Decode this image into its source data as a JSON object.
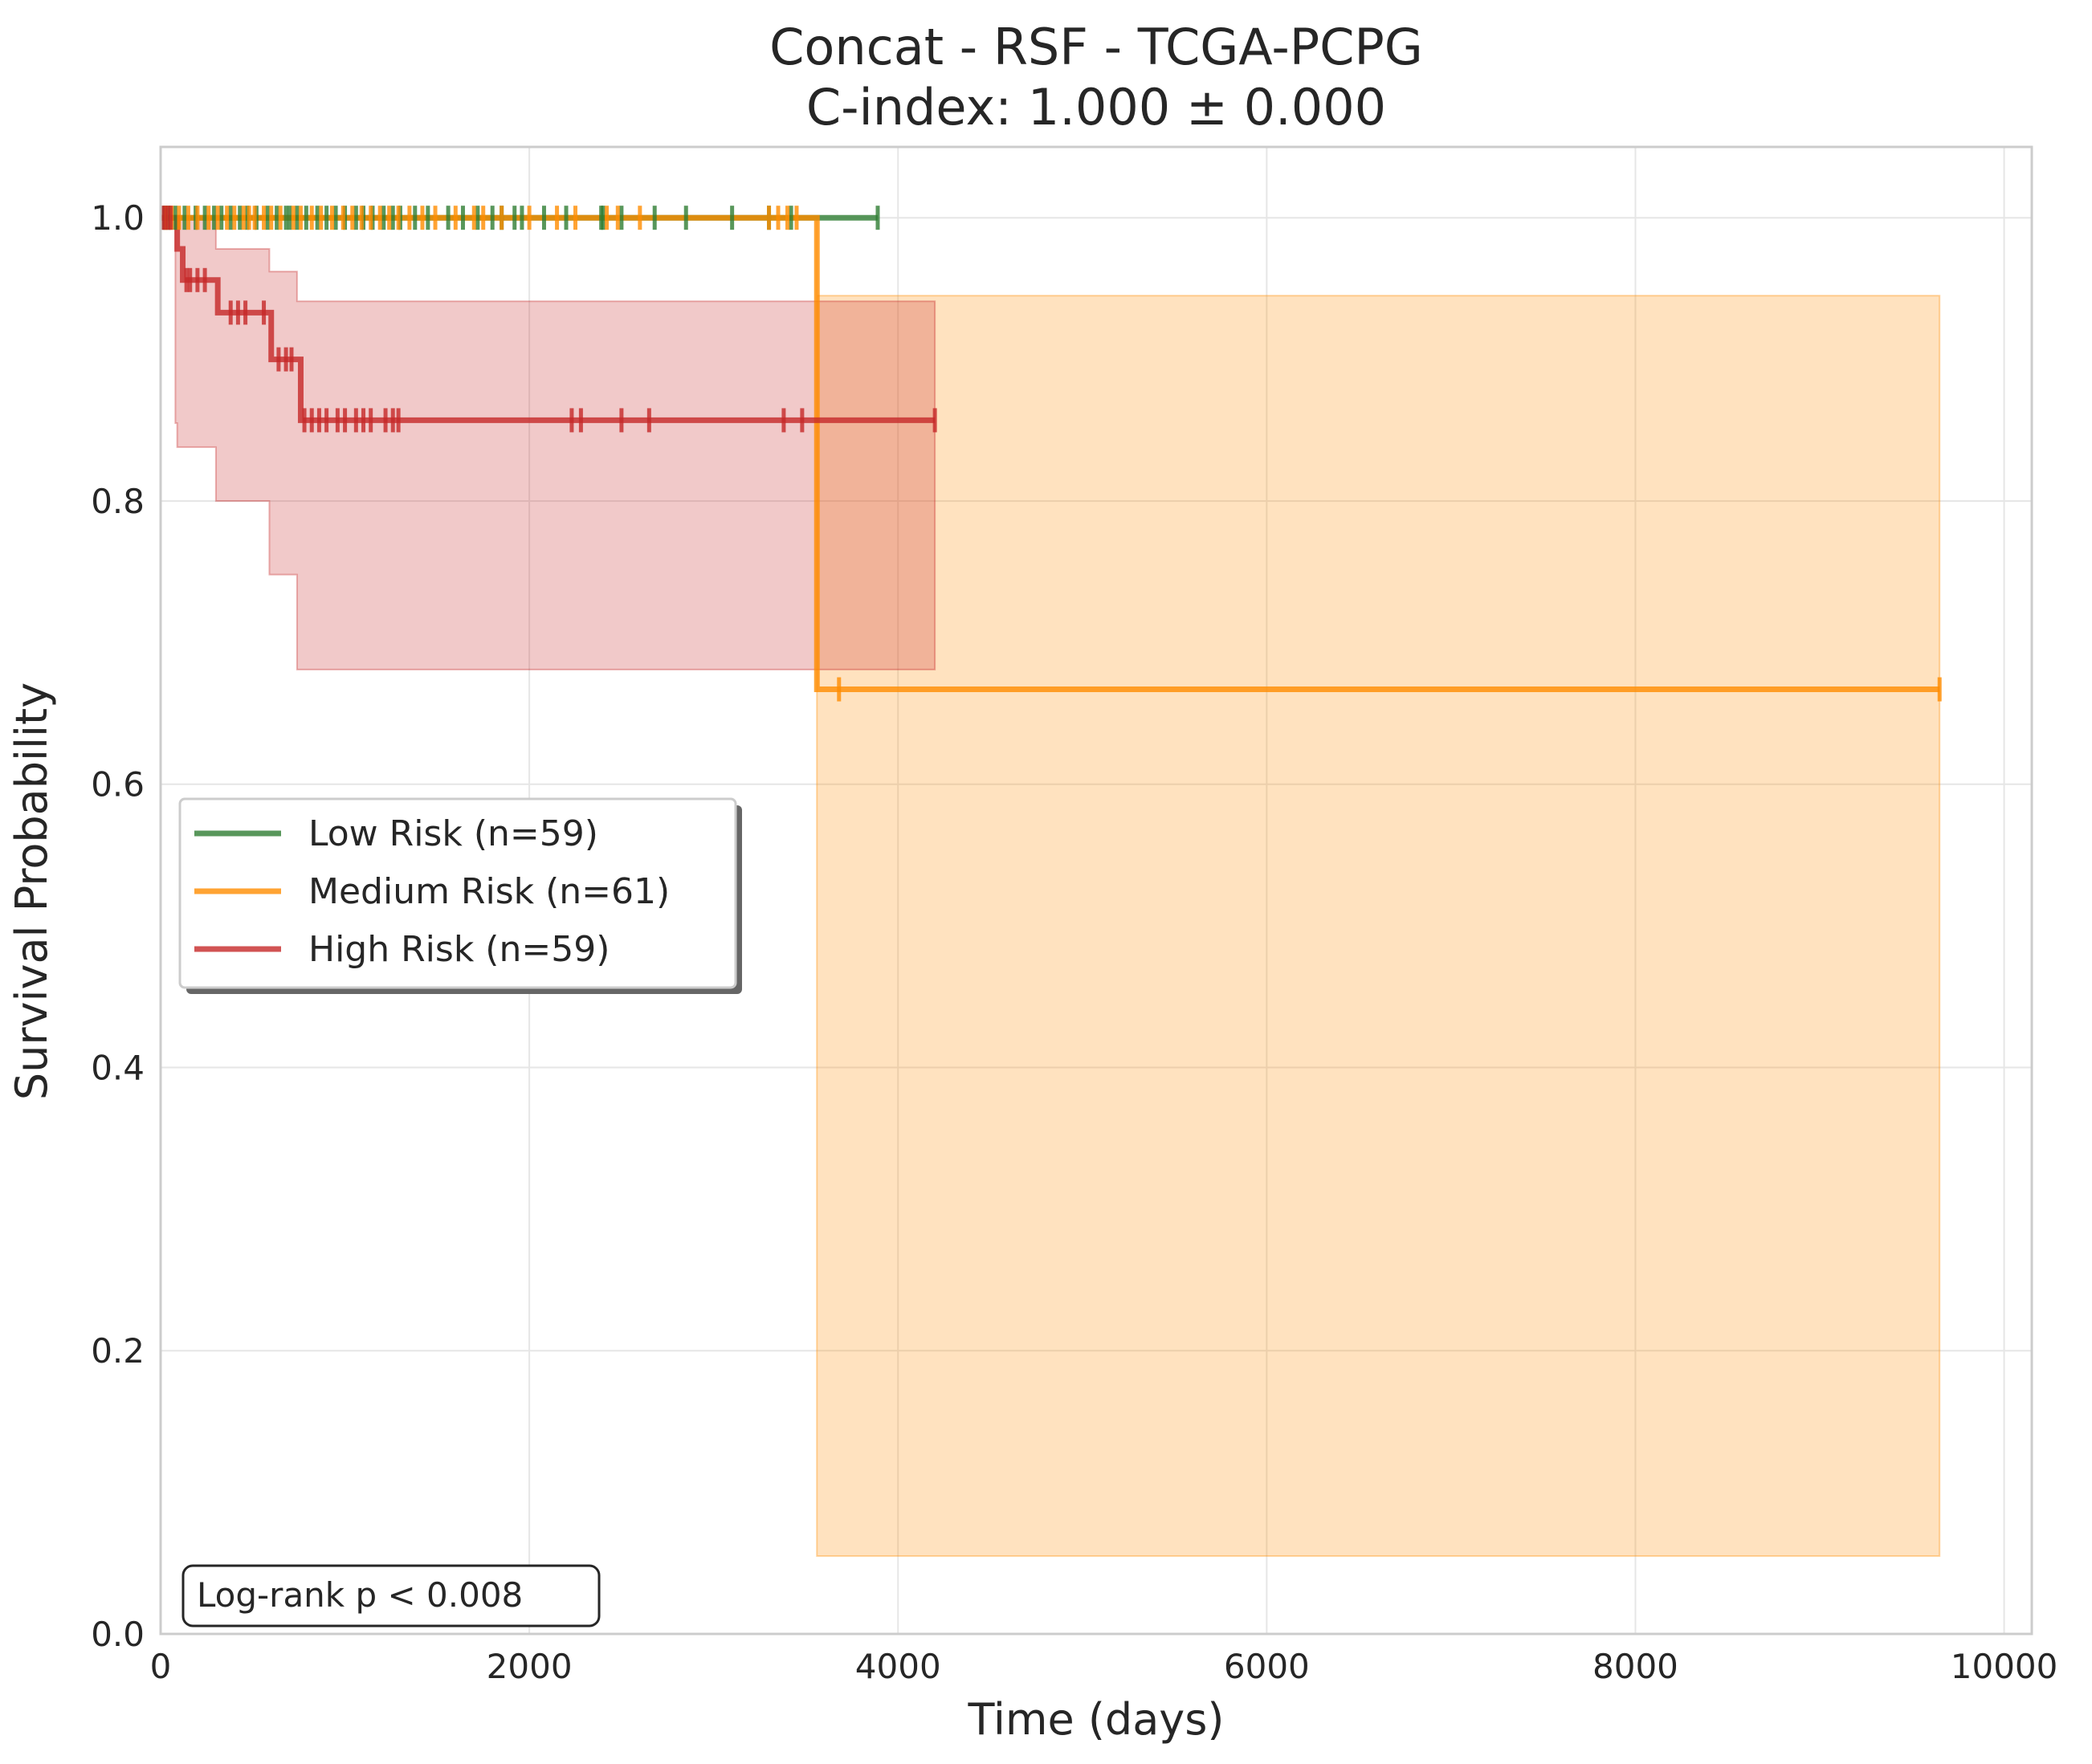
{
  "chart_data": {
    "type": "line",
    "subtype": "kaplan-meier",
    "title": "Concat - RSF - TCGA-PCPG",
    "subtitle": "C-index: 1.000 ± 0.000",
    "xlabel": "Time (days)",
    "ylabel": "Survival Probability",
    "xlim": [
      0,
      10150
    ],
    "ylim": [
      0,
      1.05
    ],
    "xticks": [
      0,
      2000,
      4000,
      6000,
      8000,
      10000
    ],
    "xtick_labels": [
      "0",
      "2000",
      "4000",
      "6000",
      "8000",
      "10000"
    ],
    "yticks": [
      0.0,
      0.2,
      0.4,
      0.6,
      0.8,
      1.0
    ],
    "ytick_labels": [
      "0.0",
      "0.2",
      "0.4",
      "0.6",
      "0.8",
      "1.0"
    ],
    "grid": true,
    "legend_position": "center-left",
    "annotation": "Log-rank p < 0.008",
    "series": [
      {
        "name": "Low Risk (n=59)",
        "color": "#2e7d32",
        "steps": [
          [
            0,
            1.0
          ],
          [
            3890,
            1.0
          ]
        ],
        "ci": [],
        "censor_times": [
          20,
          45,
          80,
          130,
          190,
          240,
          290,
          330,
          380,
          430,
          470,
          520,
          580,
          630,
          680,
          700,
          740,
          790,
          850,
          900,
          950,
          1000,
          1060,
          1100,
          1150,
          1210,
          1260,
          1300,
          1380,
          1450,
          1560,
          1640,
          1720,
          1800,
          1850,
          1920,
          1960,
          2080,
          2200,
          2390,
          2400,
          2500,
          2680,
          2850,
          3100,
          3300,
          3420,
          3890
        ]
      },
      {
        "name": "Medium Risk (n=61)",
        "color": "#ff8c00",
        "steps": [
          [
            0,
            1.0
          ],
          [
            3560,
            1.0
          ],
          [
            3560,
            0.667
          ],
          [
            9650,
            0.667
          ]
        ],
        "ci": [
          [
            0,
            1.0,
            1.0
          ],
          [
            3560,
            0.055,
            0.945
          ],
          [
            9650,
            0.055,
            0.945
          ]
        ],
        "censor_times": [
          30,
          60,
          100,
          150,
          200,
          260,
          310,
          360,
          400,
          450,
          480,
          510,
          560,
          600,
          650,
          720,
          760,
          820,
          870,
          930,
          990,
          1040,
          1090,
          1140,
          1190,
          1240,
          1290,
          1350,
          1420,
          1490,
          1600,
          1700,
          1750,
          1850,
          2000,
          2150,
          2250,
          2420,
          2480,
          2600,
          3300,
          3350,
          3400,
          3450,
          3680,
          9650
        ]
      },
      {
        "name": "High Risk (n=59)",
        "color": "#c62828",
        "steps": [
          [
            0,
            1.0
          ],
          [
            70,
            1.0
          ],
          [
            90,
            0.978
          ],
          [
            120,
            0.956
          ],
          [
            300,
            0.956
          ],
          [
            310,
            0.933
          ],
          [
            590,
            0.933
          ],
          [
            600,
            0.9
          ],
          [
            740,
            0.9
          ],
          [
            760,
            0.857
          ],
          [
            4200,
            0.857
          ]
        ],
        "ci": [
          [
            0,
            1.0,
            1.0
          ],
          [
            80,
            0.855,
            1.0
          ],
          [
            90,
            0.838,
            1.0
          ],
          [
            300,
            0.8,
            0.978
          ],
          [
            590,
            0.748,
            0.962
          ],
          [
            740,
            0.681,
            0.941
          ],
          [
            4200,
            0.681,
            0.941
          ]
        ],
        "censor_times": [
          10,
          25,
          40,
          55,
          140,
          160,
          200,
          240,
          380,
          420,
          460,
          560,
          640,
          680,
          710,
          780,
          820,
          860,
          900,
          960,
          1000,
          1060,
          1100,
          1140,
          1220,
          1260,
          1290,
          2230,
          2280,
          2500,
          2650,
          3380,
          3480,
          4200
        ]
      }
    ]
  }
}
